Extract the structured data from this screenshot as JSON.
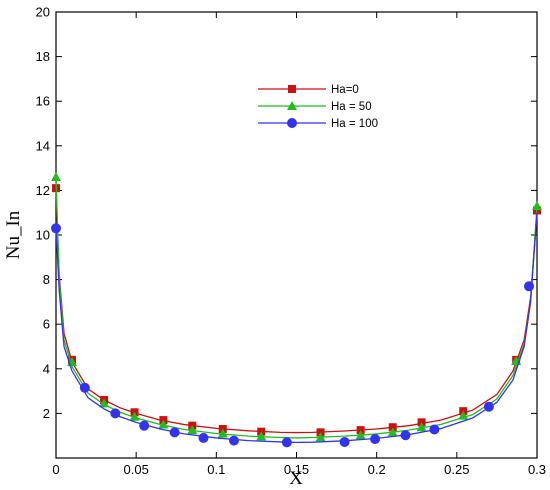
{
  "chart_data": {
    "type": "line",
    "xlabel": "X",
    "ylabel": "Nu_In",
    "xlim": [
      0,
      0.3
    ],
    "ylim": [
      0,
      20
    ],
    "xticks": [
      0,
      0.05,
      0.1,
      0.15,
      0.2,
      0.25,
      0.3
    ],
    "xtick_labels": [
      "0",
      "0.05",
      "0.1",
      "0.15",
      "0.2",
      "0.25",
      "0.3"
    ],
    "yticks": [
      2,
      4,
      6,
      8,
      10,
      12,
      14,
      16,
      18,
      20
    ],
    "ytick_labels": [
      "2",
      "4",
      "6",
      "8",
      "10",
      "12",
      "14",
      "16",
      "18",
      "20"
    ],
    "grid": false,
    "legend_position": "top-center",
    "series": [
      {
        "name": "Ha=0",
        "color": "#cc1111",
        "marker": "square",
        "curve": [
          [
            0,
            12.1
          ],
          [
            0.002,
            8.2
          ],
          [
            0.005,
            5.6
          ],
          [
            0.01,
            4.3
          ],
          [
            0.02,
            3.1
          ],
          [
            0.03,
            2.6
          ],
          [
            0.04,
            2.25
          ],
          [
            0.05,
            2.0
          ],
          [
            0.065,
            1.7
          ],
          [
            0.08,
            1.5
          ],
          [
            0.1,
            1.33
          ],
          [
            0.12,
            1.22
          ],
          [
            0.14,
            1.15
          ],
          [
            0.15,
            1.14
          ],
          [
            0.16,
            1.15
          ],
          [
            0.18,
            1.21
          ],
          [
            0.2,
            1.3
          ],
          [
            0.22,
            1.45
          ],
          [
            0.24,
            1.7
          ],
          [
            0.26,
            2.15
          ],
          [
            0.275,
            2.85
          ],
          [
            0.285,
            3.9
          ],
          [
            0.292,
            5.3
          ],
          [
            0.296,
            7.2
          ],
          [
            0.3,
            11.0
          ]
        ],
        "marker_points": [
          [
            0,
            12.1
          ],
          [
            0.01,
            4.4
          ],
          [
            0.03,
            2.6
          ],
          [
            0.049,
            2.05
          ],
          [
            0.067,
            1.7
          ],
          [
            0.085,
            1.45
          ],
          [
            0.104,
            1.3
          ],
          [
            0.128,
            1.18
          ],
          [
            0.165,
            1.15
          ],
          [
            0.19,
            1.25
          ],
          [
            0.21,
            1.38
          ],
          [
            0.228,
            1.6
          ],
          [
            0.254,
            2.1
          ],
          [
            0.287,
            4.4
          ],
          [
            0.3,
            11.1
          ]
        ]
      },
      {
        "name": "Ha = 50",
        "color": "#22bb22",
        "marker": "triangle",
        "curve": [
          [
            0,
            12.6
          ],
          [
            0.002,
            8.0
          ],
          [
            0.005,
            5.3
          ],
          [
            0.01,
            4.1
          ],
          [
            0.02,
            2.9
          ],
          [
            0.03,
            2.4
          ],
          [
            0.04,
            2.05
          ],
          [
            0.05,
            1.8
          ],
          [
            0.065,
            1.5
          ],
          [
            0.08,
            1.28
          ],
          [
            0.1,
            1.1
          ],
          [
            0.12,
            0.98
          ],
          [
            0.14,
            0.92
          ],
          [
            0.15,
            0.9
          ],
          [
            0.16,
            0.92
          ],
          [
            0.18,
            0.98
          ],
          [
            0.2,
            1.08
          ],
          [
            0.22,
            1.25
          ],
          [
            0.24,
            1.5
          ],
          [
            0.26,
            1.95
          ],
          [
            0.275,
            2.65
          ],
          [
            0.285,
            3.7
          ],
          [
            0.292,
            5.1
          ],
          [
            0.296,
            7.0
          ],
          [
            0.3,
            11.3
          ]
        ],
        "marker_points": [
          [
            0,
            12.6
          ],
          [
            0.01,
            4.3
          ],
          [
            0.03,
            2.45
          ],
          [
            0.049,
            1.85
          ],
          [
            0.067,
            1.5
          ],
          [
            0.085,
            1.25
          ],
          [
            0.104,
            1.1
          ],
          [
            0.128,
            0.97
          ],
          [
            0.165,
            0.93
          ],
          [
            0.19,
            1.02
          ],
          [
            0.21,
            1.15
          ],
          [
            0.228,
            1.38
          ],
          [
            0.254,
            1.9
          ],
          [
            0.287,
            4.35
          ],
          [
            0.3,
            11.3
          ]
        ]
      },
      {
        "name": "Ha = 100",
        "color": "#3333ee",
        "marker": "circle",
        "curve": [
          [
            0,
            10.3
          ],
          [
            0.002,
            7.5
          ],
          [
            0.005,
            5.0
          ],
          [
            0.01,
            3.9
          ],
          [
            0.02,
            2.7
          ],
          [
            0.03,
            2.2
          ],
          [
            0.04,
            1.85
          ],
          [
            0.05,
            1.6
          ],
          [
            0.065,
            1.3
          ],
          [
            0.08,
            1.08
          ],
          [
            0.1,
            0.9
          ],
          [
            0.12,
            0.78
          ],
          [
            0.14,
            0.72
          ],
          [
            0.15,
            0.7
          ],
          [
            0.16,
            0.71
          ],
          [
            0.18,
            0.77
          ],
          [
            0.2,
            0.88
          ],
          [
            0.22,
            1.05
          ],
          [
            0.24,
            1.32
          ],
          [
            0.26,
            1.8
          ],
          [
            0.275,
            2.5
          ],
          [
            0.285,
            3.5
          ],
          [
            0.292,
            5.0
          ],
          [
            0.296,
            7.0
          ],
          [
            0.3,
            11.0
          ]
        ],
        "marker_points": [
          [
            0,
            10.3
          ],
          [
            0.018,
            3.15
          ],
          [
            0.037,
            2.0
          ],
          [
            0.055,
            1.45
          ],
          [
            0.074,
            1.15
          ],
          [
            0.092,
            0.9
          ],
          [
            0.111,
            0.78
          ],
          [
            0.144,
            0.7
          ],
          [
            0.18,
            0.72
          ],
          [
            0.199,
            0.85
          ],
          [
            0.218,
            1.02
          ],
          [
            0.236,
            1.28
          ],
          [
            0.27,
            2.3
          ],
          [
            0.295,
            7.7
          ]
        ]
      }
    ]
  }
}
